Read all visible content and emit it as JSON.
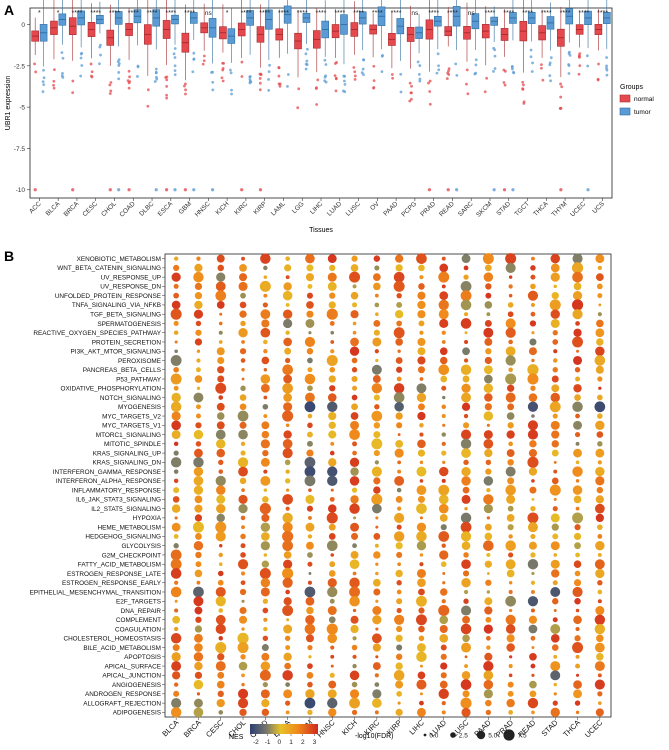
{
  "panel_a": {
    "label": "A",
    "ylabel": "UBR1 expression",
    "xlabel": "Tissues",
    "y_ticks": [
      "0",
      "-2.5",
      "-5",
      "-7.5",
      "-10"
    ],
    "legend": {
      "title": "Groups",
      "items": [
        {
          "name": "normal",
          "color": "#e5484d"
        },
        {
          "name": "tumor",
          "color": "#5b9bd5"
        }
      ]
    }
  },
  "panel_b": {
    "label": "B",
    "legend_nes": {
      "title": "NES",
      "ticks": [
        "-2",
        "-1",
        "0",
        "1",
        "2",
        "3"
      ]
    },
    "legend_size": {
      "title": "-log10(FDR)",
      "items": [
        "0.0",
        "2.5",
        "5.0",
        "7.5"
      ]
    }
  },
  "chart_data": [
    {
      "type": "box",
      "title": "",
      "xlabel": "Tissues",
      "ylabel": "UBR1 expression",
      "ylim": [
        -10.5,
        1
      ],
      "categories": [
        "ACC",
        "BLCA",
        "BRCA",
        "CESC",
        "CHOL",
        "COAD",
        "DLBC",
        "ESCA",
        "GBM",
        "HNSC",
        "KICH",
        "KIRC",
        "KIRP",
        "LAML",
        "LGG",
        "LIHC",
        "LUAD",
        "LUSC",
        "OV",
        "PAAD",
        "PCPG",
        "PRAD",
        "READ",
        "SARC",
        "SKCM",
        "STAD",
        "TGCT",
        "THCA",
        "THYM",
        "UCEC",
        "UCS"
      ],
      "significance": [
        "*",
        "*",
        "****",
        "****",
        "****",
        "****",
        "****",
        "****",
        "****",
        "ns",
        "*",
        "****",
        "****",
        "****",
        "****",
        "****",
        "****",
        "****",
        "****",
        "****",
        "ns",
        "****",
        "****",
        "ns",
        "****",
        "****",
        "****",
        "****",
        "****",
        "****",
        "****"
      ],
      "series": [
        {
          "name": "normal",
          "medians": [
            -0.7,
            -0.2,
            -0.1,
            -0.3,
            -0.8,
            -0.3,
            -0.6,
            -0.3,
            -1.1,
            -0.2,
            -0.5,
            -0.3,
            -0.6,
            -0.6,
            -1.0,
            -0.9,
            -0.4,
            -0.3,
            -0.3,
            -0.9,
            -0.6,
            -0.3,
            -0.4,
            -0.5,
            -0.4,
            -0.6,
            -0.4,
            -0.5,
            -0.8,
            -0.3,
            -0.3
          ]
        },
        {
          "name": "tumor",
          "medians": [
            -0.5,
            0.3,
            0.4,
            0.3,
            0.4,
            0.5,
            0.4,
            0.3,
            0.4,
            -0.2,
            -0.7,
            0.4,
            0.3,
            0.6,
            0.4,
            -0.3,
            0.0,
            0.4,
            0.5,
            -0.1,
            -0.5,
            0.2,
            0.5,
            0.2,
            0.2,
            0.4,
            0.4,
            0.1,
            0.5,
            0.4,
            0.4
          ]
        }
      ],
      "outliers_at": -10,
      "legend": [
        "normal",
        "tumor"
      ]
    },
    {
      "type": "bubble-heatmap",
      "columns": [
        "BLCA",
        "BRCA",
        "CESC",
        "CHOL",
        "COAD",
        "ESCA",
        "GBM",
        "HNSC",
        "KICH",
        "KIRC",
        "KIRP",
        "LIHC",
        "LUAD",
        "LUSC",
        "PAAD",
        "PRAD",
        "READ",
        "STAD",
        "THCA",
        "UCEC"
      ],
      "rows": [
        "XENOBIOTIC_METABOLISM",
        "WNT_BETA_CATENIN_SIGNALING",
        "UV_RESPONSE_UP",
        "UV_RESPONSE_DN",
        "UNFOLDED_PROTEIN_RESPONSE",
        "TNFA_SIGNALING_VIA_NFKB",
        "TGF_BETA_SIGNALING",
        "SPERMATOGENESIS",
        "REACTIVE_OXYGEN_SPECIES_PATHWAY",
        "PROTEIN_SECRETION",
        "PI3K_AKT_MTOR_SIGNALING",
        "PEROXISOME",
        "PANCREAS_BETA_CELLS",
        "P53_PATHWAY",
        "OXIDATIVE_PHOSPHORYLATION",
        "NOTCH_SIGNALING",
        "MYOGENESIS",
        "MYC_TARGETS_V2",
        "MYC_TARGETS_V1",
        "MTORC1_SIGNALING",
        "MITOTIC_SPINDLE",
        "KRAS_SIGNALING_UP",
        "KRAS_SIGNALING_DN",
        "INTERFERON_GAMMA_RESPONSE",
        "INTERFERON_ALPHA_RESPONSE",
        "INFLAMMATORY_RESPONSE",
        "IL6_JAK_STAT3_SIGNALING",
        "IL2_STAT5_SIGNALING",
        "HYPOXIA",
        "HEME_METABOLISM",
        "HEDGEHOG_SIGNALING",
        "GLYCOLYSIS",
        "G2M_CHECKPOINT",
        "FATTY_ACID_METABOLISM",
        "ESTROGEN_RESPONSE_LATE",
        "ESTROGEN_RESPONSE_EARLY",
        "EPITHELIAL_MESENCHYMAL_TRANSITION",
        "E2F_TARGETS",
        "DNA_REPAIR",
        "COMPLEMENT",
        "COAGULATION",
        "CHOLESTEROL_HOMEOSTASIS",
        "BILE_ACID_METABOLISM",
        "APOPTOSIS",
        "APICAL_SURFACE",
        "APICAL_JUNCTION",
        "ANGIOGENESIS",
        "ANDROGEN_RESPONSE",
        "ALLOGRAFT_REJECTION",
        "ADIPOGENESIS"
      ],
      "color_metric": "NES",
      "color_range": [
        -2,
        3
      ],
      "size_metric": "-log10(FDR)",
      "size_range": [
        0,
        7.5
      ],
      "note": "cells approximated: NES mostly 1-3 (orange/red), negative for MYOGENESIS and selected immune/EMT cells"
    }
  ]
}
